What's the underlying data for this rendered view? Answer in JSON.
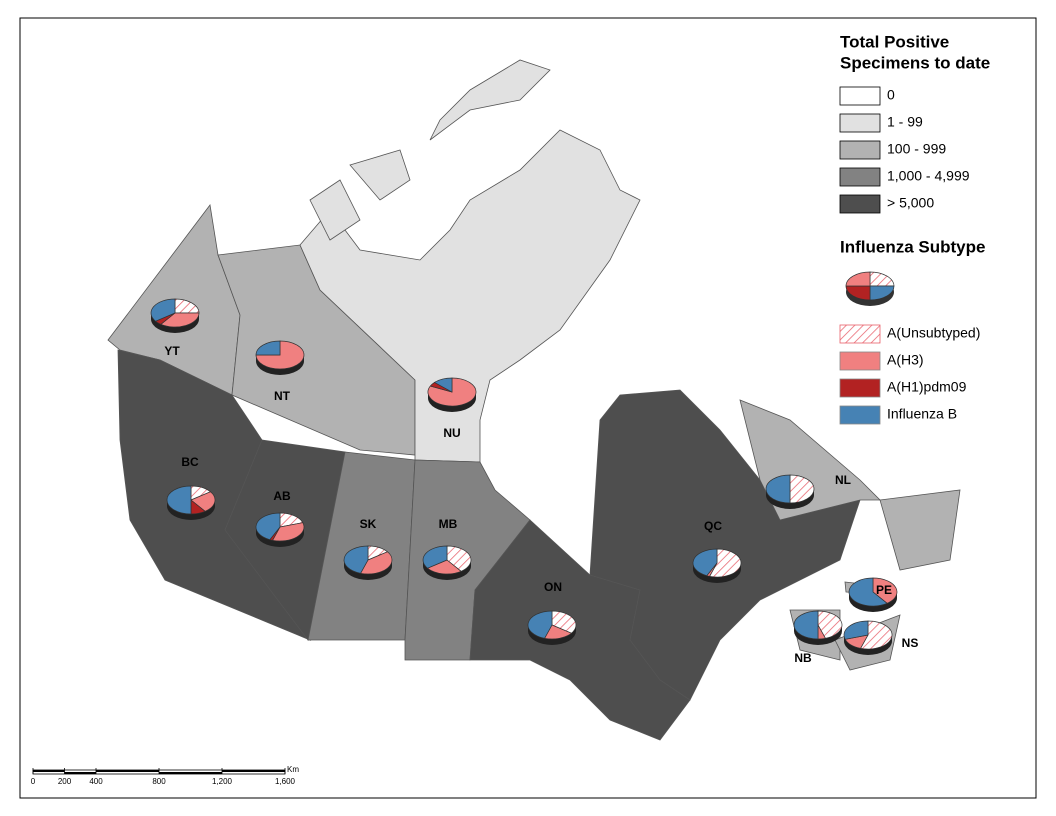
{
  "legend": {
    "title_lines": [
      "Total Positive",
      "Specimens to date"
    ],
    "classes": [
      {
        "label": "0",
        "color": "#ffffff"
      },
      {
        "label": "1 - 99",
        "color": "#e1e1e1"
      },
      {
        "label": "100 - 999",
        "color": "#b2b2b2"
      },
      {
        "label": "1,000 - 4,999",
        "color": "#828282"
      },
      {
        "label": "> 5,000",
        "color": "#4e4e4e"
      }
    ]
  },
  "subtype_legend": {
    "title": "Influenza Subtype",
    "series": [
      {
        "name": "A(Unsubtyped)",
        "color": "#e8606a",
        "hatched": true
      },
      {
        "name": "A(H3)",
        "color": "#f08080"
      },
      {
        "name": "A(H1)pdm09",
        "color": "#b22222"
      },
      {
        "name": "Influenza B",
        "color": "#4682b4"
      }
    ]
  },
  "regions": [
    {
      "label": "YT",
      "level": 2,
      "shares": [
        25,
        35,
        5,
        35
      ]
    },
    {
      "label": "NT",
      "level": 2,
      "shares": [
        0,
        75,
        0,
        25
      ]
    },
    {
      "label": "NU",
      "level": 1,
      "shares": [
        0,
        82,
        5,
        13
      ]
    },
    {
      "label": "BC",
      "level": 4,
      "shares": [
        15,
        25,
        10,
        50
      ]
    },
    {
      "label": "AB",
      "level": 4,
      "shares": [
        20,
        35,
        2,
        43
      ]
    },
    {
      "label": "SK",
      "level": 3,
      "shares": [
        15,
        40,
        0,
        45
      ]
    },
    {
      "label": "MB",
      "level": 3,
      "shares": [
        40,
        25,
        0,
        35
      ]
    },
    {
      "label": "ON",
      "level": 4,
      "shares": [
        35,
        20,
        0,
        45
      ]
    },
    {
      "label": "QC",
      "level": 4,
      "shares": [
        55,
        2,
        0,
        43
      ]
    },
    {
      "label": "NL",
      "level": 2,
      "shares": [
        50,
        0,
        0,
        50
      ]
    },
    {
      "label": "PE",
      "level": 2,
      "shares": [
        0,
        40,
        0,
        60
      ]
    },
    {
      "label": "NB",
      "level": 2,
      "shares": [
        45,
        5,
        0,
        50
      ]
    },
    {
      "label": "NS",
      "level": 2,
      "shares": [
        55,
        15,
        0,
        30
      ]
    }
  ],
  "scale_bar": {
    "unit": "Km",
    "ticks": [
      0,
      200,
      400,
      800,
      {
        "value": 1200,
        "label": "1,200"
      },
      {
        "value": 1600,
        "label": "1,600"
      }
    ]
  }
}
